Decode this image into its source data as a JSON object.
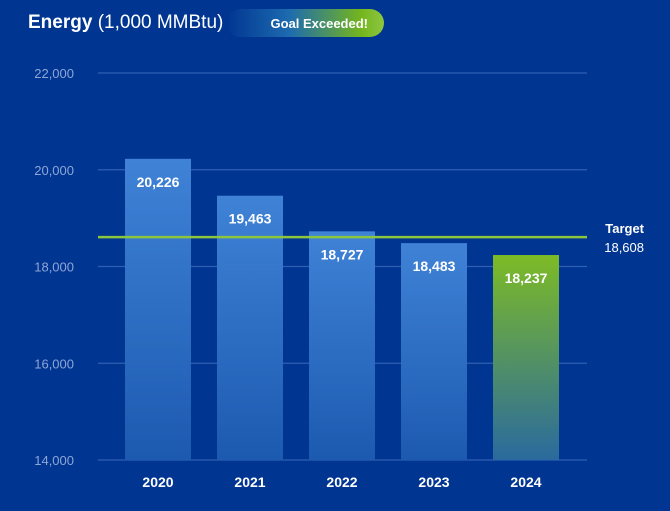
{
  "title": {
    "main": "Energy",
    "unit": "(1,000 MMBtu)"
  },
  "badge": "Goal Exceeded!",
  "colors": {
    "background": "#003591",
    "bar": "#3d80d4",
    "highlight_bar": "#7dbb26",
    "target_line": "#8cc63f",
    "gridline": "#2f5fb3"
  },
  "chart_data": {
    "type": "bar",
    "categories": [
      "2020",
      "2021",
      "2022",
      "2023",
      "2024"
    ],
    "values": [
      20226,
      19463,
      18727,
      18483,
      18237
    ],
    "value_labels": [
      "20,226",
      "19,463",
      "18,727",
      "18,483",
      "18,237"
    ],
    "highlight_category": "2024",
    "ylim": [
      14000,
      22000
    ],
    "yticks": [
      14000,
      16000,
      18000,
      20000,
      22000
    ],
    "ytick_labels": [
      "14,000",
      "16,000",
      "18,000",
      "20,000",
      "22,000"
    ],
    "grid": true,
    "target": {
      "label": "Target",
      "value": 18608,
      "value_label": "18,608"
    }
  }
}
